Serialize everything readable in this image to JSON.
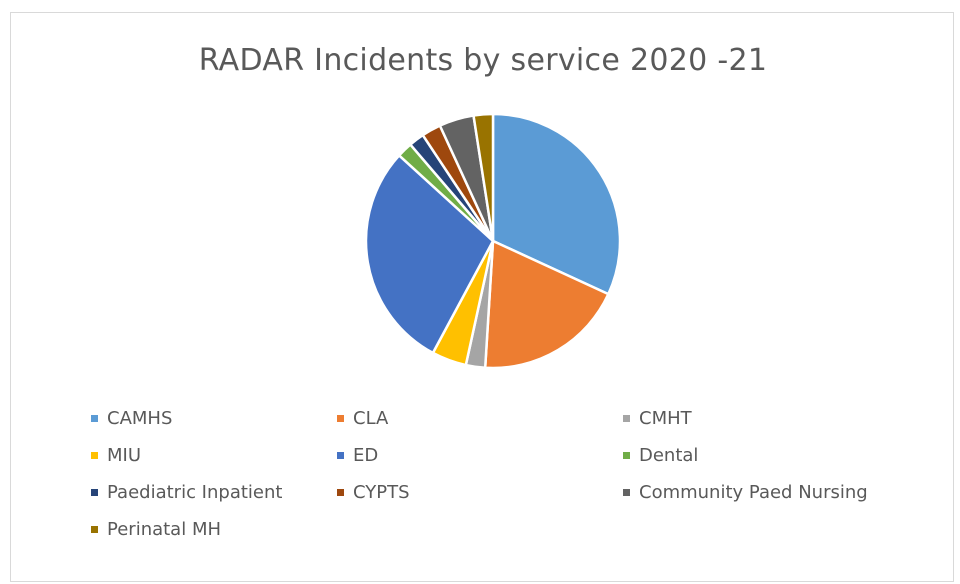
{
  "chart_data": {
    "type": "pie",
    "title": "RADAR Incidents by service 2020 -21",
    "categories": [
      "CAMHS",
      "CLA",
      "CMHT",
      "MIU",
      "ED",
      "Dental",
      "Paediatric Inpatient",
      "CYPTS",
      "Community Paed Nursing",
      "Perinatal MH"
    ],
    "values": [
      32.5,
      19.5,
      2.5,
      4.5,
      29.5,
      2,
      2,
      2.5,
      4.5,
      2.5
    ],
    "colors": [
      "#5b9bd5",
      "#ed7d31",
      "#a5a5a5",
      "#ffc000",
      "#4472c4",
      "#70ad47",
      "#264478",
      "#9e480e",
      "#636363",
      "#997300"
    ],
    "legend": "bottom"
  }
}
